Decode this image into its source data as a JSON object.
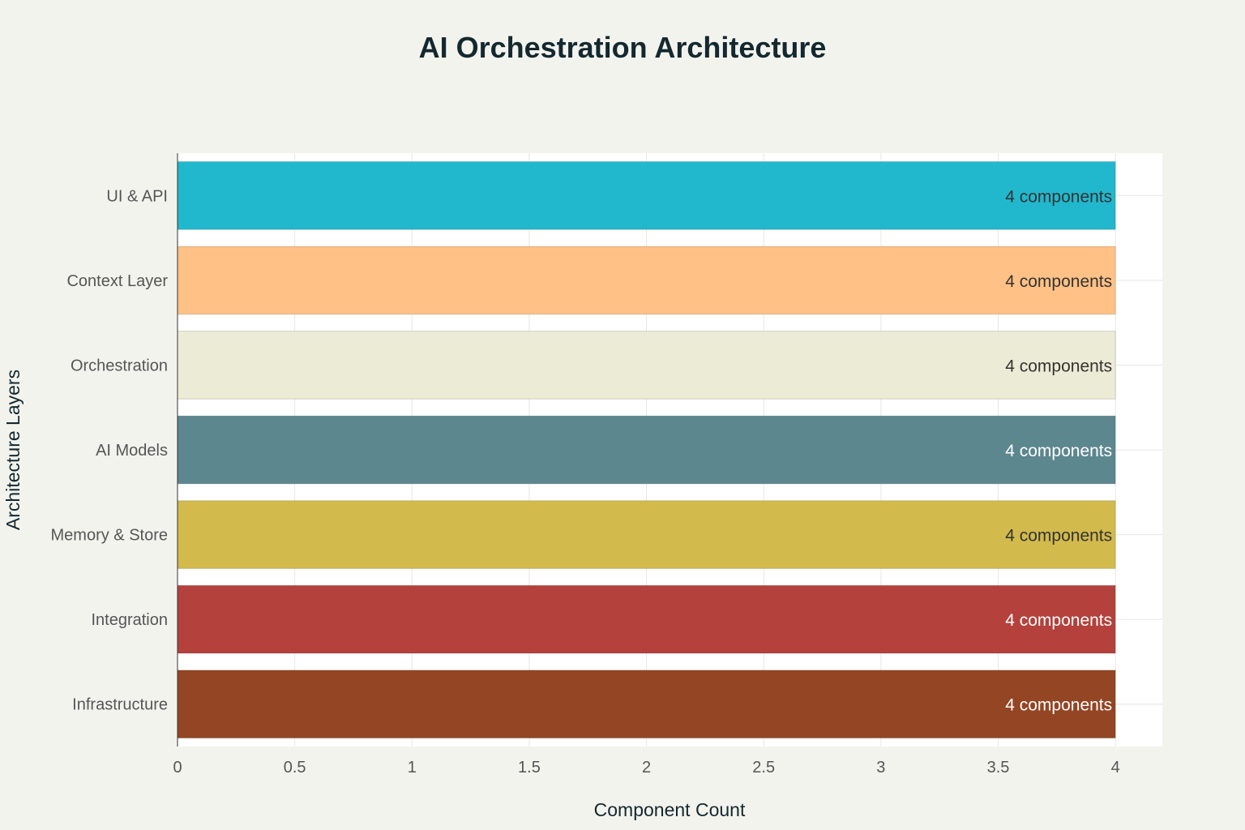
{
  "chart_data": {
    "type": "bar",
    "orientation": "horizontal",
    "title": "AI Orchestration Architecture",
    "xlabel": "Component Count",
    "ylabel": "Architecture Layers",
    "xlim": [
      0,
      4.2
    ],
    "xticks": [
      0,
      0.5,
      1,
      1.5,
      2,
      2.5,
      3,
      3.5,
      4
    ],
    "xtick_labels": [
      "0",
      "0.5",
      "1",
      "1.5",
      "2",
      "2.5",
      "3",
      "3.5",
      "4"
    ],
    "grid": true,
    "categories": [
      "UI & API",
      "Context Layer",
      "Orchestration",
      "AI Models",
      "Memory & Store",
      "Integration",
      "Infrastructure"
    ],
    "values": [
      4,
      4,
      4,
      4,
      4,
      4,
      4
    ],
    "data_labels": [
      "4 components",
      "4 components",
      "4 components",
      "4 components",
      "4 components",
      "4 components",
      "4 components"
    ],
    "colors": [
      "#21b8cd",
      "#ffc185",
      "#ecebd5",
      "#5d878f",
      "#d2ba4c",
      "#b4413c",
      "#944524"
    ],
    "label_colors": [
      "#333333",
      "#333333",
      "#333333",
      "#ffffff",
      "#333333",
      "#ffffff",
      "#ffffff"
    ]
  }
}
